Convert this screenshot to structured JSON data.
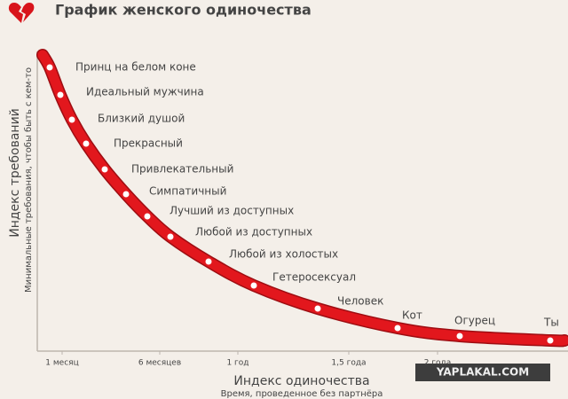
{
  "header": {
    "title": "График женского одиночества"
  },
  "y_axis": {
    "title": "Индекс требований",
    "subtitle": "Минимальные требования, чтобы быть с кем-то"
  },
  "x_axis": {
    "title": "Индекс одиночества",
    "subtitle": "Время, проведенное без партнёра",
    "ticks": [
      "1 месяц",
      "6 месяцев",
      "1 год",
      "1,5 года",
      "2 года"
    ]
  },
  "points": [
    {
      "label": "Принц на белом коне"
    },
    {
      "label": "Идеальный мужчина"
    },
    {
      "label": "Близкий душой"
    },
    {
      "label": "Прекрасный"
    },
    {
      "label": "Привлекательный"
    },
    {
      "label": "Симпатичный"
    },
    {
      "label": "Лучший из доступных"
    },
    {
      "label": "Любой из доступных"
    },
    {
      "label": "Любой из холостых"
    },
    {
      "label": "Гетеросексуал"
    },
    {
      "label": "Человек"
    },
    {
      "label": "Кот"
    },
    {
      "label": "Огурец"
    },
    {
      "label": "Ты"
    }
  ],
  "watermark": "YAPLAKAL.COM"
}
